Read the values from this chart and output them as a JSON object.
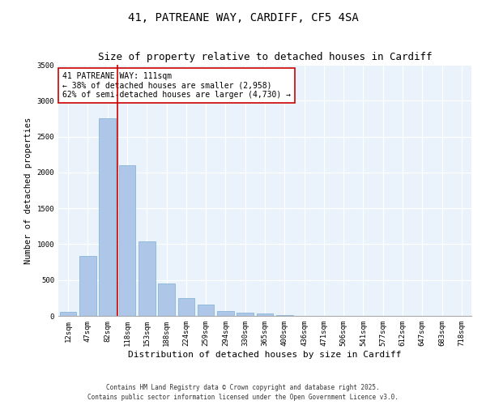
{
  "title1": "41, PATREANE WAY, CARDIFF, CF5 4SA",
  "title2": "Size of property relative to detached houses in Cardiff",
  "xlabel": "Distribution of detached houses by size in Cardiff",
  "ylabel": "Number of detached properties",
  "categories": [
    "12sqm",
    "47sqm",
    "82sqm",
    "118sqm",
    "153sqm",
    "188sqm",
    "224sqm",
    "259sqm",
    "294sqm",
    "330sqm",
    "365sqm",
    "400sqm",
    "436sqm",
    "471sqm",
    "506sqm",
    "541sqm",
    "577sqm",
    "612sqm",
    "647sqm",
    "683sqm",
    "718sqm"
  ],
  "bar_values": [
    55,
    840,
    2760,
    2100,
    1040,
    450,
    245,
    160,
    65,
    45,
    30,
    15,
    5,
    0,
    0,
    0,
    0,
    0,
    0,
    0,
    0
  ],
  "bar_color": "#aec6e8",
  "bar_edge_color": "#7bafd4",
  "vline_color": "#cc0000",
  "annotation_text": "41 PATREANE WAY: 111sqm\n← 38% of detached houses are smaller (2,958)\n62% of semi-detached houses are larger (4,730) →",
  "annotation_box_color": "#ffffff",
  "annotation_box_edge": "#cc0000",
  "ylim": [
    0,
    3500
  ],
  "yticks": [
    0,
    500,
    1000,
    1500,
    2000,
    2500,
    3000,
    3500
  ],
  "background_color": "#eaf3fb",
  "grid_color": "#ffffff",
  "footer": "Contains HM Land Registry data © Crown copyright and database right 2025.\nContains public sector information licensed under the Open Government Licence v3.0.",
  "title1_fontsize": 10,
  "title2_fontsize": 9,
  "xlabel_fontsize": 8,
  "ylabel_fontsize": 7.5,
  "tick_fontsize": 6.5,
  "annotation_fontsize": 7,
  "footer_fontsize": 5.5
}
